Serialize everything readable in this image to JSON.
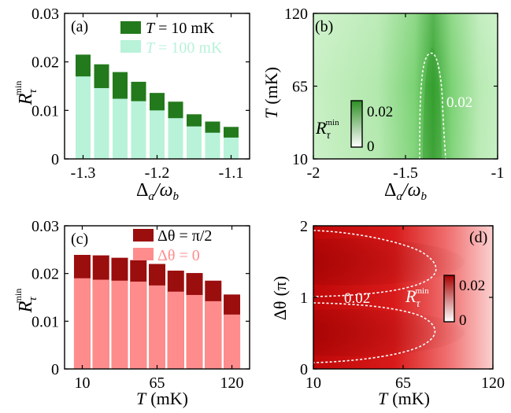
{
  "chart_data": [
    {
      "panel": "a",
      "type": "bar",
      "stacked_overlay": true,
      "panel_label": "(a)",
      "x": [
        -1.3,
        -1.275,
        -1.25,
        -1.225,
        -1.2,
        -1.175,
        -1.15,
        -1.125,
        -1.1
      ],
      "xticks": [
        "-1.3",
        "-1.2",
        "-1.1"
      ],
      "xtick_values": [
        -1.3,
        -1.2,
        -1.1
      ],
      "xlim": [
        -1.325,
        -1.075
      ],
      "ylim": [
        0,
        0.03
      ],
      "yticks": [
        "0",
        "0.01",
        "0.02",
        "0.03"
      ],
      "ytick_values": [
        0,
        0.01,
        0.02,
        0.03
      ],
      "ylabel_main": "R",
      "ylabel_sub": "τ",
      "ylabel_sup": "min",
      "xlabel_main": "Δ",
      "xlabel_sub1": "a",
      "xlabel_sep": "/ω",
      "xlabel_sub2": "b",
      "series": [
        {
          "name_var": "T",
          "name_rest": " = 10 mK",
          "color": "#237a1c",
          "values": [
            0.0215,
            0.0195,
            0.0179,
            0.0159,
            0.0136,
            0.0118,
            0.0092,
            0.0077,
            0.0066
          ]
        },
        {
          "name_var": "T",
          "name_rest": " = 100 mK",
          "color": "#b8f2d9",
          "values": [
            0.017,
            0.0146,
            0.0124,
            0.0119,
            0.01,
            0.0084,
            0.0067,
            0.0054,
            0.0044
          ]
        }
      ]
    },
    {
      "panel": "b",
      "type": "heatmap",
      "panel_label": "(b)",
      "xlim": [
        -2,
        -1
      ],
      "xticks": [
        "-2",
        "-1.5",
        "-1"
      ],
      "xtick_values": [
        -2,
        -1.5,
        -1
      ],
      "ylim": [
        10,
        120
      ],
      "yticks": [
        "10",
        "65",
        "120"
      ],
      "ytick_values": [
        10,
        65,
        120
      ],
      "ylabel_main": "T",
      "ylabel_unit": "(mK)",
      "xlabel_main": "Δ",
      "xlabel_sub1": "a",
      "xlabel_sep": "/ω",
      "xlabel_sub2": "b",
      "contour_label": "0.02",
      "colorbar": {
        "min_label": "0",
        "max_label": "0.02",
        "low_color": "#ffffff",
        "high_color": "#2f8f26",
        "label_main": "R",
        "label_sub": "τ",
        "label_sup": "min"
      }
    },
    {
      "panel": "c",
      "type": "bar",
      "stacked_overlay": true,
      "panel_label": "(c)",
      "x": [
        10,
        23.75,
        37.5,
        51.25,
        65,
        78.75,
        92.5,
        106.25,
        120
      ],
      "xticks": [
        "10",
        "65",
        "120"
      ],
      "xtick_values": [
        10,
        65,
        120
      ],
      "xlim": [
        -3,
        133
      ],
      "ylim": [
        0,
        0.03
      ],
      "yticks": [
        "0",
        "0.01",
        "0.02",
        "0.03"
      ],
      "ytick_values": [
        0,
        0.01,
        0.02,
        0.03
      ],
      "ylabel_main": "R",
      "ylabel_sub": "τ",
      "ylabel_sup": "min",
      "xlabel_main": "T",
      "xlabel_unit": "(mK)",
      "series": [
        {
          "name_main": "Δθ = π/2",
          "color": "#9b0e0e",
          "values": [
            0.0239,
            0.0238,
            0.0233,
            0.0228,
            0.022,
            0.0206,
            0.0201,
            0.0185,
            0.0156
          ]
        },
        {
          "name_main": "Δθ = 0",
          "color": "#ff8c8c",
          "values": [
            0.019,
            0.0187,
            0.0185,
            0.0183,
            0.0175,
            0.0162,
            0.0155,
            0.0142,
            0.0114
          ]
        }
      ]
    },
    {
      "panel": "d",
      "type": "heatmap",
      "panel_label": "(d)",
      "xlim": [
        10,
        120
      ],
      "xticks": [
        "10",
        "65",
        "120"
      ],
      "xtick_values": [
        10,
        65,
        120
      ],
      "ylim": [
        0,
        2
      ],
      "yticks": [
        "0",
        "1",
        "2"
      ],
      "ytick_values": [
        0,
        1,
        2
      ],
      "ylabel_main": "Δθ",
      "ylabel_unit": "(π)",
      "xlabel_main": "T",
      "xlabel_unit": "(mK)",
      "contour_label": "0.02",
      "colorbar": {
        "min_label": "0",
        "max_label": "0.02",
        "low_color": "#ffffff",
        "high_color": "#a80000",
        "label_main": "R",
        "label_sub": "τ",
        "label_sup": "min"
      }
    }
  ]
}
